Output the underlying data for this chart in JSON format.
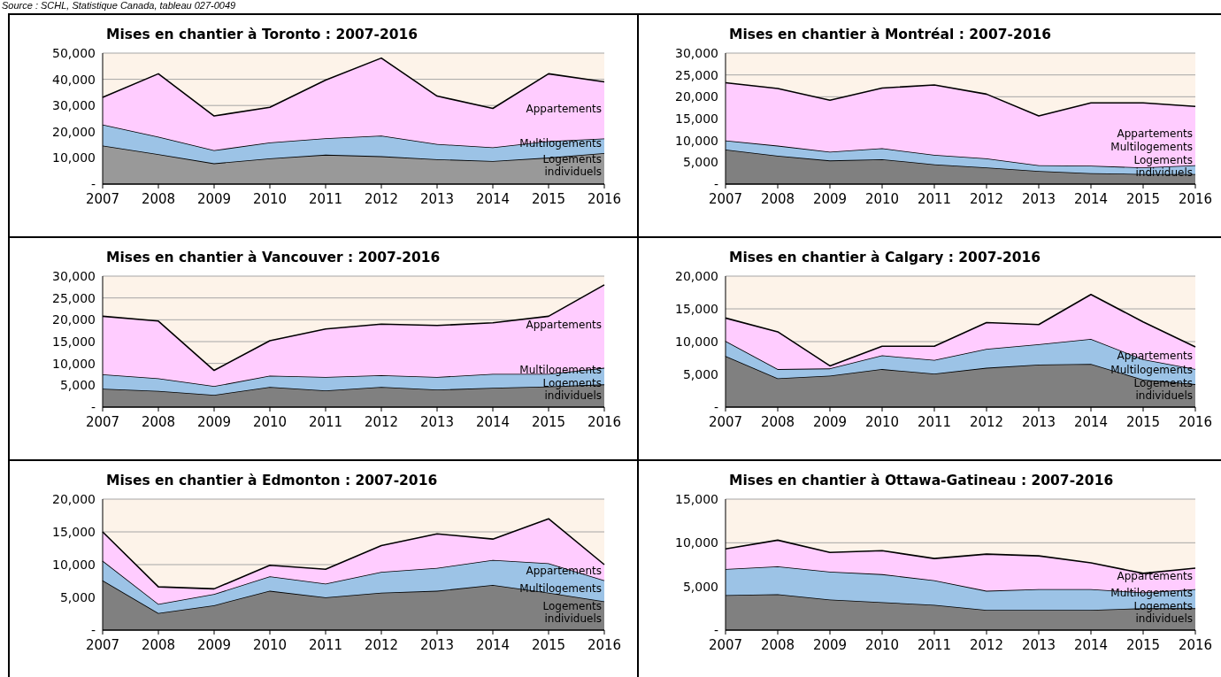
{
  "chart_data": [
    {
      "type": "area",
      "stacked": true,
      "title": "Mises en chantier à Toronto : 2007-2016",
      "annotations": [
        "Source : SCHL, Statistique Canada, tableau 027-0049"
      ],
      "categories": [
        "2007",
        "2008",
        "2009",
        "2010",
        "2011",
        "2012",
        "2013",
        "2014",
        "2015",
        "2016"
      ],
      "series": [
        {
          "name": "Logements individuels",
          "color": "#999999",
          "values": [
            14700,
            11400,
            7900,
            9800,
            11200,
            10600,
            9500,
            8800,
            10100,
            11800
          ]
        },
        {
          "name": "Multilogements",
          "color": "#9cc3e6",
          "values": [
            8000,
            6700,
            5000,
            6100,
            6300,
            7900,
            5800,
            5200,
            6300,
            5600
          ]
        },
        {
          "name": "Appartements",
          "color": "#ffccff",
          "values": [
            10400,
            24000,
            13100,
            13400,
            22200,
            29600,
            18300,
            14900,
            25700,
            21600
          ]
        }
      ],
      "ylim": [
        0,
        50000
      ],
      "yticks": [
        {
          "value": 0,
          "label": "-"
        },
        {
          "value": 10000,
          "label": "10,000"
        },
        {
          "value": 20000,
          "label": "20,000"
        },
        {
          "value": 30000,
          "label": "30,000"
        },
        {
          "value": 40000,
          "label": "40,000"
        },
        {
          "value": 50000,
          "label": "50,000"
        }
      ],
      "grid": "y"
    },
    {
      "type": "area",
      "stacked": true,
      "title": "Mises en chantier à Montréal : 2007-2016",
      "categories": [
        "2007",
        "2008",
        "2009",
        "2010",
        "2011",
        "2012",
        "2013",
        "2014",
        "2015",
        "2016"
      ],
      "series": [
        {
          "name": "Logements individuels",
          "color": "#808080",
          "values": [
            7900,
            6500,
            5400,
            5700,
            4500,
            3800,
            3000,
            2500,
            2300,
            2300
          ]
        },
        {
          "name": "Multilogements",
          "color": "#9cc3e6",
          "values": [
            2100,
            2300,
            2000,
            2500,
            2200,
            2100,
            1300,
            1700,
            1500,
            2000
          ]
        },
        {
          "name": "Appartements",
          "color": "#ffccff",
          "values": [
            13200,
            13100,
            11800,
            13800,
            16000,
            14700,
            11300,
            14400,
            14800,
            13500
          ]
        }
      ],
      "ylim": [
        0,
        30000
      ],
      "yticks": [
        {
          "value": 0,
          "label": "-"
        },
        {
          "value": 5000,
          "label": "5,000"
        },
        {
          "value": 10000,
          "label": "10,000"
        },
        {
          "value": 15000,
          "label": "15,000"
        },
        {
          "value": 20000,
          "label": "20,000"
        },
        {
          "value": 25000,
          "label": "25,000"
        },
        {
          "value": 30000,
          "label": "30,000"
        }
      ],
      "grid": "y"
    },
    {
      "type": "area",
      "stacked": true,
      "title": "Mises en chantier à Vancouver : 2007-2016",
      "categories": [
        "2007",
        "2008",
        "2009",
        "2010",
        "2011",
        "2012",
        "2013",
        "2014",
        "2015",
        "2016"
      ],
      "series": [
        {
          "name": "Logements individuels",
          "color": "#808080",
          "values": [
            4200,
            3700,
            2800,
            4600,
            3800,
            4600,
            4000,
            4400,
            4700,
            5200
          ]
        },
        {
          "name": "Multilogements",
          "color": "#9cc3e6",
          "values": [
            3300,
            2900,
            2000,
            2600,
            3100,
            2700,
            2900,
            3200,
            2900,
            3800
          ]
        },
        {
          "name": "Appartements",
          "color": "#ffccff",
          "values": [
            13300,
            13100,
            3600,
            8000,
            11000,
            11700,
            11800,
            11700,
            13200,
            19000
          ]
        }
      ],
      "ylim": [
        0,
        30000
      ],
      "yticks": [
        {
          "value": 0,
          "label": "-"
        },
        {
          "value": 5000,
          "label": "5,000"
        },
        {
          "value": 10000,
          "label": "10,000"
        },
        {
          "value": 15000,
          "label": "15,000"
        },
        {
          "value": 20000,
          "label": "20,000"
        },
        {
          "value": 25000,
          "label": "25,000"
        },
        {
          "value": 30000,
          "label": "30,000"
        }
      ],
      "grid": "y"
    },
    {
      "type": "area",
      "stacked": true,
      "title": "Mises en chantier à Calgary : 2007-2016",
      "categories": [
        "2007",
        "2008",
        "2009",
        "2010",
        "2011",
        "2012",
        "2013",
        "2014",
        "2015",
        "2016"
      ],
      "series": [
        {
          "name": "Logements individuels",
          "color": "#808080",
          "values": [
            7800,
            4400,
            4800,
            5800,
            5100,
            6000,
            6500,
            6600,
            4200,
            3500
          ]
        },
        {
          "name": "Multilogements",
          "color": "#9cc3e6",
          "values": [
            2300,
            1400,
            1100,
            2100,
            2100,
            2900,
            3100,
            3800,
            3100,
            2300
          ]
        },
        {
          "name": "Appartements",
          "color": "#ffccff",
          "values": [
            3500,
            5700,
            400,
            1400,
            2100,
            4000,
            3000,
            6800,
            5700,
            3400
          ]
        }
      ],
      "ylim": [
        0,
        20000
      ],
      "yticks": [
        {
          "value": 0,
          "label": "-"
        },
        {
          "value": 5000,
          "label": "5,000"
        },
        {
          "value": 10000,
          "label": "10,000"
        },
        {
          "value": 15000,
          "label": "15,000"
        },
        {
          "value": 20000,
          "label": "20,000"
        }
      ],
      "grid": "y"
    },
    {
      "type": "area",
      "stacked": true,
      "title": "Mises en chantier à Edmonton : 2007-2016",
      "categories": [
        "2007",
        "2008",
        "2009",
        "2010",
        "2011",
        "2012",
        "2013",
        "2014",
        "2015",
        "2016"
      ],
      "series": [
        {
          "name": "Logements individuels",
          "color": "#808080",
          "values": [
            7600,
            2600,
            3800,
            6000,
            5000,
            5700,
            6000,
            6900,
            5700,
            4400
          ]
        },
        {
          "name": "Multilogements",
          "color": "#9cc3e6",
          "values": [
            3000,
            1400,
            1700,
            2200,
            2100,
            3200,
            3500,
            3800,
            4500,
            3200
          ]
        },
        {
          "name": "Appartements",
          "color": "#ffccff",
          "values": [
            4400,
            2600,
            800,
            1700,
            2200,
            4000,
            5200,
            3200,
            6800,
            2400
          ]
        }
      ],
      "ylim": [
        0,
        20000
      ],
      "yticks": [
        {
          "value": 0,
          "label": "-"
        },
        {
          "value": 5000,
          "label": "5,000"
        },
        {
          "value": 10000,
          "label": "10,000"
        },
        {
          "value": 15000,
          "label": "15,000"
        },
        {
          "value": 20000,
          "label": "20,000"
        }
      ],
      "grid": "y"
    },
    {
      "type": "area",
      "stacked": true,
      "title": "Mises en chantier à Ottawa-Gatineau : 2007-2016",
      "categories": [
        "2007",
        "2008",
        "2009",
        "2010",
        "2011",
        "2012",
        "2013",
        "2014",
        "2015",
        "2016"
      ],
      "series": [
        {
          "name": "Logements individuels",
          "color": "#808080",
          "values": [
            4000,
            4100,
            3500,
            3200,
            2900,
            2300,
            2300,
            2300,
            2500,
            2500
          ]
        },
        {
          "name": "Multilogements",
          "color": "#9cc3e6",
          "values": [
            3000,
            3200,
            3200,
            3200,
            2800,
            2200,
            2400,
            2400,
            1800,
            2200
          ]
        },
        {
          "name": "Appartements",
          "color": "#ffccff",
          "values": [
            2300,
            3000,
            2200,
            2700,
            2500,
            4200,
            3800,
            3000,
            2200,
            2400
          ]
        }
      ],
      "ylim": [
        0,
        15000
      ],
      "yticks": [
        {
          "value": 0,
          "label": "-"
        },
        {
          "value": 5000,
          "label": "5,000"
        },
        {
          "value": 10000,
          "label": "10,000"
        },
        {
          "value": 15000,
          "label": "15,000"
        }
      ],
      "grid": "y"
    }
  ]
}
